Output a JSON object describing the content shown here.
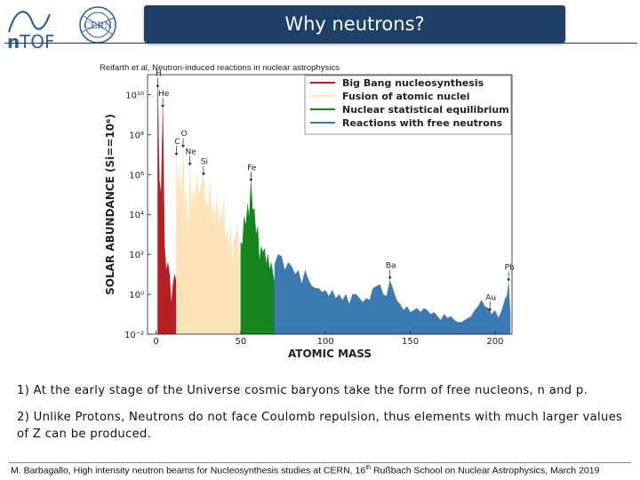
{
  "header": {
    "title": "Why neutrons?",
    "logo_ntof": "n_TOF",
    "logo_cern": "CERN"
  },
  "chart_data": {
    "type": "area",
    "source": "Reifarth et al, Neutron-induced reactions in nuclear astrophysics",
    "xlabel": "ATOMIC MASS",
    "ylabel": "SOLAR ABUNDANCE (Si==10⁶)",
    "xlim": [
      -5,
      210
    ],
    "ylim_log10": [
      -2,
      11
    ],
    "yscale": "log",
    "x_ticks": [
      0,
      50,
      100,
      150,
      200
    ],
    "y_ticks": [
      {
        "exp": -2,
        "label": "10⁻²"
      },
      {
        "exp": 0,
        "label": "10⁰"
      },
      {
        "exp": 2,
        "label": "10²"
      },
      {
        "exp": 4,
        "label": "10⁴"
      },
      {
        "exp": 6,
        "label": "10⁶"
      },
      {
        "exp": 8,
        "label": "10⁸"
      },
      {
        "exp": 10,
        "label": "10¹⁰"
      }
    ],
    "legend_position": "top-right",
    "series": [
      {
        "name": "Big Bang nucleosynthesis",
        "color": "#b42025",
        "points": [
          [
            1,
            10.4
          ],
          [
            2,
            5.7
          ],
          [
            3,
            5.0
          ],
          [
            4,
            9.4
          ],
          [
            5,
            2.5
          ],
          [
            6,
            1.2
          ],
          [
            7,
            1.6
          ],
          [
            8,
            1.0
          ],
          [
            9,
            -0.5
          ],
          [
            10,
            0.5
          ],
          [
            11,
            1.0
          ],
          [
            12,
            0.6
          ]
        ]
      },
      {
        "name": "Fusion of atomic nuclei",
        "color": "#fde3ba",
        "points": [
          [
            12,
            7.0
          ],
          [
            13,
            5.1
          ],
          [
            14,
            6.4
          ],
          [
            15,
            4.6
          ],
          [
            16,
            7.4
          ],
          [
            17,
            4.3
          ],
          [
            18,
            5.1
          ],
          [
            19,
            2.9
          ],
          [
            20,
            6.5
          ],
          [
            21,
            4.2
          ],
          [
            22,
            5.3
          ],
          [
            23,
            4.6
          ],
          [
            24,
            6.0
          ],
          [
            25,
            5.1
          ],
          [
            26,
            5.2
          ],
          [
            27,
            5.7
          ],
          [
            28,
            6.0
          ],
          [
            29,
            4.7
          ],
          [
            30,
            4.5
          ],
          [
            31,
            4.5
          ],
          [
            32,
            5.7
          ],
          [
            33,
            3.8
          ],
          [
            34,
            4.6
          ],
          [
            35,
            3.5
          ],
          [
            36,
            5.1
          ],
          [
            37,
            3.2
          ],
          [
            38,
            4.3
          ],
          [
            39,
            3.6
          ],
          [
            40,
            4.8
          ],
          [
            41,
            2.6
          ],
          [
            42,
            3.3
          ],
          [
            43,
            2.1
          ],
          [
            44,
            3.5
          ],
          [
            45,
            1.5
          ],
          [
            46,
            2.8
          ],
          [
            47,
            2.9
          ],
          [
            48,
            3.6
          ],
          [
            49,
            2.2
          ],
          [
            50,
            1.8
          ]
        ]
      },
      {
        "name": "Nuclear statistical equilibrium",
        "color": "#15861e",
        "points": [
          [
            50,
            2.6
          ],
          [
            51,
            2.5
          ],
          [
            52,
            3.9
          ],
          [
            53,
            3.4
          ],
          [
            54,
            4.5
          ],
          [
            55,
            3.8
          ],
          [
            56,
            5.7
          ],
          [
            57,
            4.2
          ],
          [
            58,
            4.3
          ],
          [
            59,
            3.0
          ],
          [
            60,
            3.4
          ],
          [
            61,
            1.6
          ],
          [
            62,
            2.4
          ],
          [
            63,
            2.1
          ],
          [
            64,
            2.3
          ],
          [
            65,
            1.5
          ],
          [
            66,
            2.0
          ],
          [
            67,
            1.2
          ],
          [
            68,
            1.6
          ],
          [
            69,
            1.0
          ],
          [
            70,
            0.6
          ]
        ]
      },
      {
        "name": "Reactions with free neutrons",
        "color": "#3d7ab3",
        "points": [
          [
            70,
            1.5
          ],
          [
            72,
            2.0
          ],
          [
            74,
            1.9
          ],
          [
            76,
            1.2
          ],
          [
            78,
            1.6
          ],
          [
            80,
            1.4
          ],
          [
            82,
            1.0
          ],
          [
            84,
            1.2
          ],
          [
            86,
            0.5
          ],
          [
            88,
            1.2
          ],
          [
            90,
            0.7
          ],
          [
            92,
            0.4
          ],
          [
            94,
            0.3
          ],
          [
            96,
            0.3
          ],
          [
            98,
            0.1
          ],
          [
            100,
            0.2
          ],
          [
            102,
            -0.1
          ],
          [
            104,
            0.2
          ],
          [
            106,
            -0.2
          ],
          [
            108,
            0.0
          ],
          [
            110,
            -0.3
          ],
          [
            112,
            0.0
          ],
          [
            114,
            -0.5
          ],
          [
            116,
            0.0
          ],
          [
            118,
            0.0
          ],
          [
            120,
            -0.2
          ],
          [
            122,
            -0.4
          ],
          [
            124,
            -0.2
          ],
          [
            126,
            -0.3
          ],
          [
            128,
            0.3
          ],
          [
            130,
            0.4
          ],
          [
            132,
            0.5
          ],
          [
            134,
            0.0
          ],
          [
            136,
            -0.1
          ],
          [
            138,
            0.7
          ],
          [
            140,
            0.2
          ],
          [
            142,
            -0.3
          ],
          [
            144,
            -0.5
          ],
          [
            146,
            -0.8
          ],
          [
            148,
            -0.6
          ],
          [
            150,
            -0.9
          ],
          [
            152,
            -0.8
          ],
          [
            154,
            -0.7
          ],
          [
            156,
            -0.9
          ],
          [
            158,
            -0.7
          ],
          [
            160,
            -0.8
          ],
          [
            162,
            -1.0
          ],
          [
            164,
            -0.9
          ],
          [
            166,
            -1.1
          ],
          [
            168,
            -1.3
          ],
          [
            170,
            -1.0
          ],
          [
            172,
            -1.2
          ],
          [
            174,
            -1.1
          ],
          [
            176,
            -1.3
          ],
          [
            178,
            -1.4
          ],
          [
            180,
            -1.4
          ],
          [
            182,
            -1.3
          ],
          [
            184,
            -1.2
          ],
          [
            186,
            -1.1
          ],
          [
            188,
            -0.8
          ],
          [
            190,
            -0.6
          ],
          [
            192,
            -0.3
          ],
          [
            194,
            -0.6
          ],
          [
            196,
            -0.7
          ],
          [
            198,
            -1.0
          ],
          [
            200,
            -0.8
          ],
          [
            202,
            -1.2
          ],
          [
            204,
            -0.8
          ],
          [
            206,
            -0.2
          ],
          [
            207,
            -0.1
          ],
          [
            208,
            0.6
          ],
          [
            209,
            -1.0
          ]
        ]
      }
    ],
    "annotations": [
      {
        "label": "H",
        "x": 1,
        "y": 10.3
      },
      {
        "label": "He",
        "x": 4,
        "y": 9.3
      },
      {
        "label": "C",
        "x": 12,
        "y": 6.9
      },
      {
        "label": "O",
        "x": 16,
        "y": 7.3
      },
      {
        "label": "Ne",
        "x": 20,
        "y": 6.4
      },
      {
        "label": "Si",
        "x": 28,
        "y": 5.9
      },
      {
        "label": "Fe",
        "x": 56,
        "y": 5.6
      },
      {
        "label": "Ba",
        "x": 138,
        "y": 0.7
      },
      {
        "label": "Au",
        "x": 197,
        "y": -0.9
      },
      {
        "label": "Pb",
        "x": 208,
        "y": 0.6
      }
    ]
  },
  "bullets": [
    "1) At the early stage of the Universe cosmic baryons take the form of free nucleons, n and p.",
    "2) Unlike Protons, Neutrons do not face Coulomb repulsion, thus elements with much larger values of Z can be produced."
  ],
  "footer": {
    "pre": "M. Barbagallo, High intensity neutron beams for Nucleosynthesis studies at CERN, 16",
    "sup": "th",
    "post": " Rußbach School on Nuclear Astrophysics, March 2019"
  },
  "colors": {
    "title_bg": "#1e3f66",
    "logo_blue": "#2f5c9e"
  }
}
